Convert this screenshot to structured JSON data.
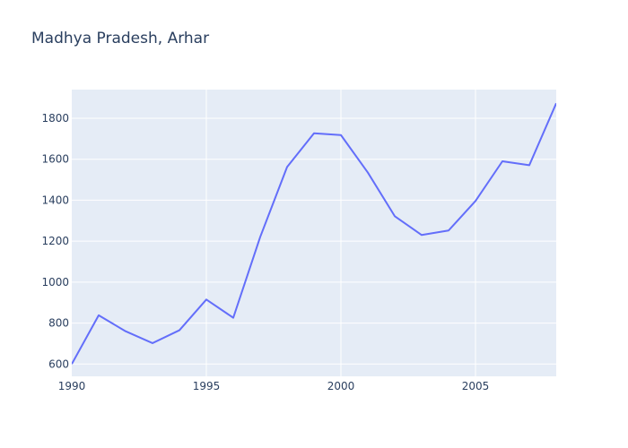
{
  "chart_data": {
    "type": "line",
    "title": "Madhya Pradesh, Arhar",
    "xlabel": "",
    "ylabel": "",
    "xlim": [
      1990,
      2008
    ],
    "ylim": [
      540,
      1940
    ],
    "grid": true,
    "x_ticks": [
      1990,
      1995,
      2000,
      2005
    ],
    "y_ticks": [
      600,
      800,
      1000,
      1200,
      1400,
      1600,
      1800
    ],
    "colors": {
      "plot_bg": "#e5ecf6",
      "grid": "#ffffff",
      "line": "#636efa",
      "text": "#2a3f5f"
    },
    "series": [
      {
        "x": [
          1990,
          1991,
          1992,
          1993,
          1994,
          1995,
          1996,
          1997,
          1998,
          1999,
          2000,
          2001,
          2002,
          2003,
          2004,
          2005,
          2006,
          2007,
          2008
        ],
        "y": [
          600,
          838,
          760,
          702,
          765,
          915,
          826,
          1220,
          1562,
          1727,
          1718,
          1535,
          1322,
          1230,
          1252,
          1396,
          1590,
          1571,
          1873
        ]
      }
    ]
  }
}
